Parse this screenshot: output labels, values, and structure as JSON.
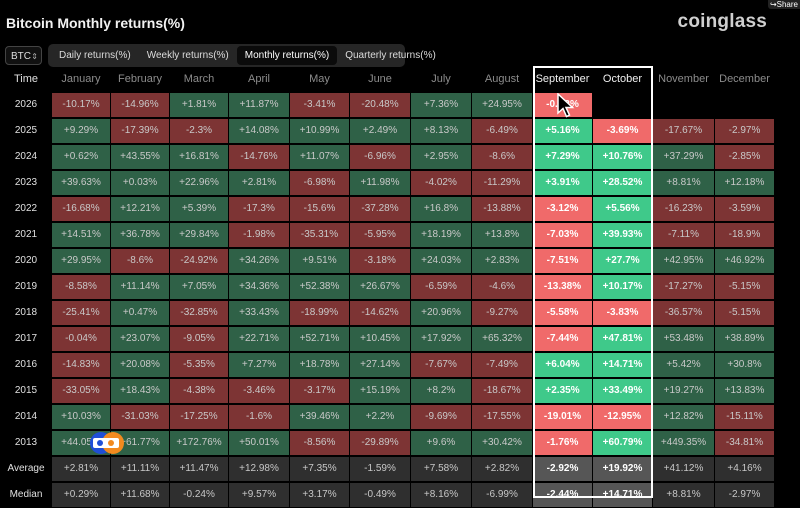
{
  "share_label": "Share",
  "title": "Bitcoin Monthly returns(%)",
  "logo": "coinglass",
  "coin": "BTC",
  "tabs": [
    {
      "label": "Daily returns(%)",
      "active": false
    },
    {
      "label": "Weekly returns(%)",
      "active": false
    },
    {
      "label": "Monthly returns(%)",
      "active": true
    },
    {
      "label": "Quarterly returns(%)",
      "active": false
    }
  ],
  "table": {
    "time_header": "Time",
    "months": [
      "January",
      "February",
      "March",
      "April",
      "May",
      "June",
      "July",
      "August",
      "September",
      "October",
      "November",
      "December"
    ],
    "highlighted_months": [
      "September",
      "October"
    ],
    "rows": [
      {
        "label": "2026",
        "values": [
          "-10.17%",
          "-14.96%",
          "+1.81%",
          "+11.87%",
          "-3.41%",
          "-20.48%",
          "+7.36%",
          "+24.95%",
          "-0.??%",
          "",
          "",
          ""
        ]
      },
      {
        "label": "2025",
        "values": [
          "+9.29%",
          "-17.39%",
          "-2.3%",
          "+14.08%",
          "+10.99%",
          "+2.49%",
          "+8.13%",
          "-6.49%",
          "+5.16%",
          "-3.69%",
          "-17.67%",
          "-2.97%"
        ]
      },
      {
        "label": "2024",
        "values": [
          "+0.62%",
          "+43.55%",
          "+16.81%",
          "-14.76%",
          "+11.07%",
          "-6.96%",
          "+2.95%",
          "-8.6%",
          "+7.29%",
          "+10.76%",
          "+37.29%",
          "-2.85%"
        ]
      },
      {
        "label": "2023",
        "values": [
          "+39.63%",
          "+0.03%",
          "+22.96%",
          "+2.81%",
          "-6.98%",
          "+11.98%",
          "-4.02%",
          "-11.29%",
          "+3.91%",
          "+28.52%",
          "+8.81%",
          "+12.18%"
        ]
      },
      {
        "label": "2022",
        "values": [
          "-16.68%",
          "+12.21%",
          "+5.39%",
          "-17.3%",
          "-15.6%",
          "-37.28%",
          "+16.8%",
          "-13.88%",
          "-3.12%",
          "+5.56%",
          "-16.23%",
          "-3.59%"
        ]
      },
      {
        "label": "2021",
        "values": [
          "+14.51%",
          "+36.78%",
          "+29.84%",
          "-1.98%",
          "-35.31%",
          "-5.95%",
          "+18.19%",
          "+13.8%",
          "-7.03%",
          "+39.93%",
          "-7.11%",
          "-18.9%"
        ]
      },
      {
        "label": "2020",
        "values": [
          "+29.95%",
          "-8.6%",
          "-24.92%",
          "+34.26%",
          "+9.51%",
          "-3.18%",
          "+24.03%",
          "+2.83%",
          "-7.51%",
          "+27.7%",
          "+42.95%",
          "+46.92%"
        ]
      },
      {
        "label": "2019",
        "values": [
          "-8.58%",
          "+11.14%",
          "+7.05%",
          "+34.36%",
          "+52.38%",
          "+26.67%",
          "-6.59%",
          "-4.6%",
          "-13.38%",
          "+10.17%",
          "-17.27%",
          "-5.15%"
        ]
      },
      {
        "label": "2018",
        "values": [
          "-25.41%",
          "+0.47%",
          "-32.85%",
          "+33.43%",
          "-18.99%",
          "-14.62%",
          "+20.96%",
          "-9.27%",
          "-5.58%",
          "-3.83%",
          "-36.57%",
          "-5.15%"
        ]
      },
      {
        "label": "2017",
        "values": [
          "-0.04%",
          "+23.07%",
          "-9.05%",
          "+22.71%",
          "+52.71%",
          "+10.45%",
          "+17.92%",
          "+65.32%",
          "-7.44%",
          "+47.81%",
          "+53.48%",
          "+38.89%"
        ]
      },
      {
        "label": "2016",
        "values": [
          "-14.83%",
          "+20.08%",
          "-5.35%",
          "+7.27%",
          "+18.78%",
          "+27.14%",
          "-7.67%",
          "-7.49%",
          "+6.04%",
          "+14.71%",
          "+5.42%",
          "+30.8%"
        ]
      },
      {
        "label": "2015",
        "values": [
          "-33.05%",
          "+18.43%",
          "-4.38%",
          "-3.46%",
          "-3.17%",
          "+15.19%",
          "+8.2%",
          "-18.67%",
          "+2.35%",
          "+33.49%",
          "+19.27%",
          "+13.83%"
        ]
      },
      {
        "label": "2014",
        "values": [
          "+10.03%",
          "-31.03%",
          "-17.25%",
          "-1.6%",
          "+39.46%",
          "+2.2%",
          "-9.69%",
          "-17.55%",
          "-19.01%",
          "-12.95%",
          "+12.82%",
          "-15.11%"
        ]
      },
      {
        "label": "2013",
        "values": [
          "+44.05%",
          "+61.77%",
          "+172.76%",
          "+50.01%",
          "-8.56%",
          "-29.89%",
          "+9.6%",
          "+30.42%",
          "-1.76%",
          "+60.79%",
          "+449.35%",
          "-34.81%"
        ]
      }
    ],
    "average": {
      "label": "Average",
      "values": [
        "+2.81%",
        "+11.11%",
        "+11.47%",
        "+12.98%",
        "+7.35%",
        "-1.59%",
        "+7.58%",
        "+2.82%",
        "-2.92%",
        "+19.92%",
        "+41.12%",
        "+4.16%"
      ]
    },
    "median": {
      "label": "Median",
      "values": [
        "+0.29%",
        "+11.68%",
        "-0.24%",
        "+9.57%",
        "+3.17%",
        "-0.49%",
        "+8.16%",
        "-6.99%",
        "-2.44%",
        "+14.71%",
        "+8.81%",
        "-2.97%"
      ]
    }
  },
  "colors": {
    "positive": "#2f6147",
    "negative": "#7d3434",
    "positive_highlight": "#3fc98a",
    "negative_highlight": "#f06a6a"
  },
  "icons": {
    "share": "share-icon",
    "coin_dropdown": "chevron-updown-icon",
    "cursor": "mouse-pointer-icon",
    "watermark": "crb-watermark-logo"
  }
}
